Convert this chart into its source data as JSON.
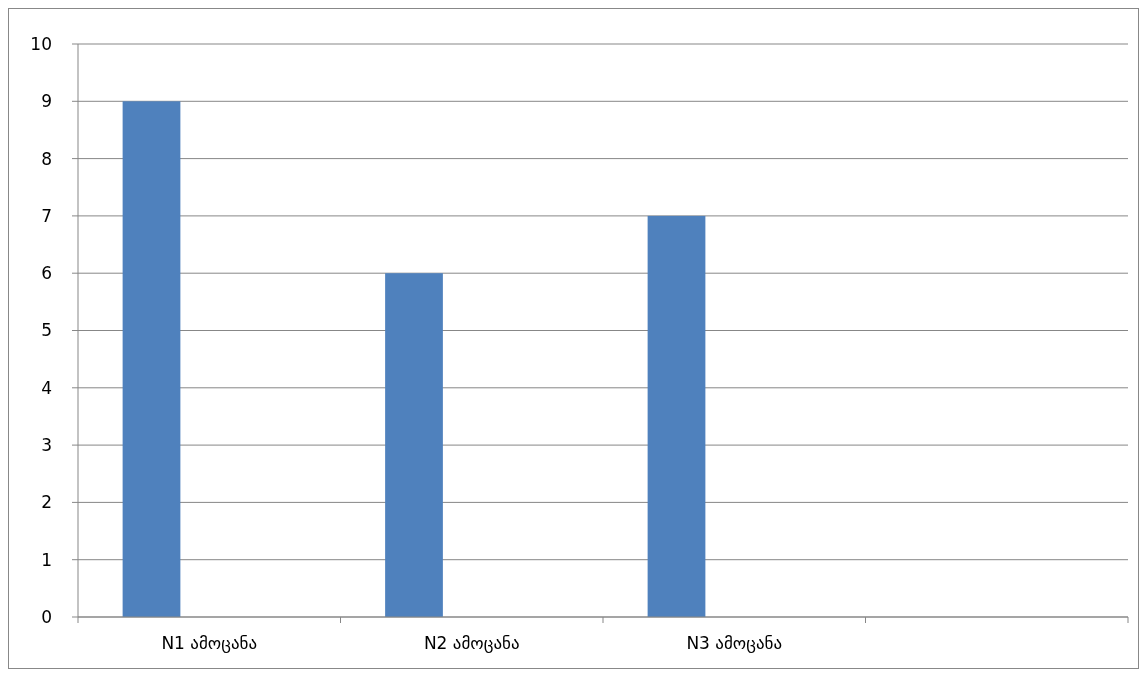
{
  "chart_data": {
    "type": "bar",
    "categories": [
      "N1 ამოცანა",
      "N2 ამოცანა",
      "N3 ამოცანა",
      null
    ],
    "values": [
      9,
      6,
      7,
      null
    ],
    "color": "#4f81bd",
    "ylim": [
      0,
      10
    ],
    "yticks": [
      0,
      1,
      2,
      3,
      4,
      5,
      6,
      7,
      8,
      9,
      10
    ],
    "grid": "y"
  }
}
